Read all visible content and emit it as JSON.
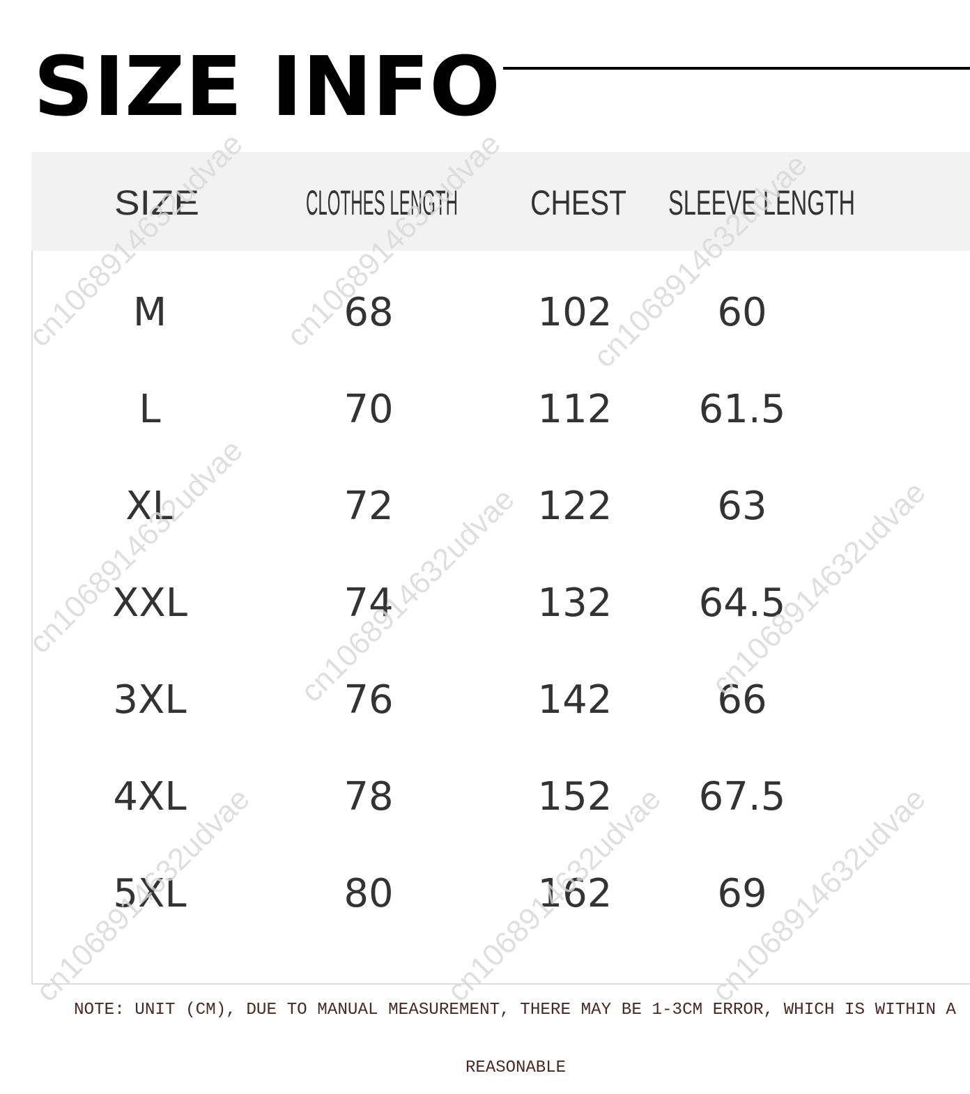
{
  "header": {
    "title": "SIZE INFO"
  },
  "table": {
    "columns": [
      "SIZE",
      "CLOTHES LENGTH",
      "CHEST",
      "SLEEVE LENGTH"
    ],
    "rows": [
      [
        "M",
        68,
        102,
        60
      ],
      [
        "L",
        70,
        112,
        61.5
      ],
      [
        "XL",
        72,
        122,
        63
      ],
      [
        "XXL",
        74,
        132,
        64.5
      ],
      [
        "3XL",
        76,
        142,
        66
      ],
      [
        "4XL",
        78,
        152,
        67.5
      ],
      [
        "5XL",
        80,
        162,
        69
      ]
    ]
  },
  "note": {
    "line1": "NOTE: UNIT (CM), DUE TO MANUAL MEASUREMENT, THERE MAY BE 1-3CM ERROR, WHICH IS WITHIN A",
    "line2": "REASONABLE"
  },
  "watermark": "cn1068914632udvae"
}
